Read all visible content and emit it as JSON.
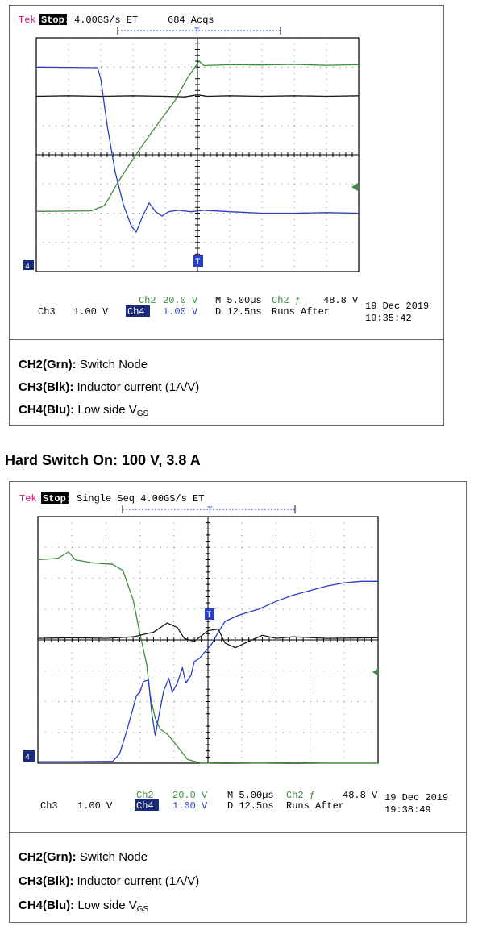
{
  "section_title": "Hard Switch On: 100 V, 3.8 A",
  "chart_data": [
    {
      "type": "line",
      "header": {
        "brand": "Tek",
        "state": "Stop:",
        "rate": "4.00GS/s ET",
        "acq": "684 Acqs"
      },
      "x_divisions": 10,
      "y_divisions": 8,
      "series": [
        {
          "name": "Ch2",
          "color": "#3c8c3c",
          "points": [
            [
              0,
              2.06
            ],
            [
              1.7,
              2.08
            ],
            [
              2.1,
              2.25
            ],
            [
              2.25,
              2.5
            ],
            [
              2.5,
              3.0
            ],
            [
              3.0,
              3.85
            ],
            [
              3.6,
              4.8
            ],
            [
              4.3,
              5.85
            ],
            [
              4.7,
              6.65
            ],
            [
              5.05,
              7.2
            ],
            [
              5.2,
              7.05
            ],
            [
              6.0,
              7.08
            ],
            [
              7.0,
              7.07
            ],
            [
              8.0,
              7.09
            ],
            [
              9.0,
              7.06
            ],
            [
              10,
              7.08
            ]
          ]
        },
        {
          "name": "Ch3",
          "color": "#1a1a1a",
          "points": [
            [
              0,
              6.0
            ],
            [
              1.0,
              6.02
            ],
            [
              2.0,
              6.0
            ],
            [
              3.0,
              6.02
            ],
            [
              4.0,
              6.0
            ],
            [
              4.6,
              5.98
            ],
            [
              5.0,
              6.05
            ],
            [
              5.3,
              6.0
            ],
            [
              6.0,
              6.02
            ],
            [
              7.0,
              6.0
            ],
            [
              8.0,
              6.02
            ],
            [
              9.0,
              6.0
            ],
            [
              10,
              6.02
            ]
          ]
        },
        {
          "name": "Ch4",
          "color": "#2a3fbf",
          "points": [
            [
              0,
              7.0
            ],
            [
              1.0,
              6.99
            ],
            [
              1.9,
              6.98
            ],
            [
              2.0,
              6.6
            ],
            [
              2.2,
              5.0
            ],
            [
              2.45,
              3.4
            ],
            [
              2.7,
              2.3
            ],
            [
              2.95,
              1.55
            ],
            [
              3.1,
              1.35
            ],
            [
              3.3,
              1.9
            ],
            [
              3.5,
              2.35
            ],
            [
              3.7,
              2.05
            ],
            [
              3.9,
              1.9
            ],
            [
              4.1,
              2.05
            ],
            [
              4.4,
              2.1
            ],
            [
              4.8,
              2.05
            ],
            [
              5.2,
              2.1
            ],
            [
              6.0,
              2.05
            ],
            [
              7.0,
              2.0
            ],
            [
              8.0,
              2.0
            ],
            [
              9.0,
              2.02
            ],
            [
              10,
              2.0
            ]
          ]
        }
      ],
      "readout": {
        "ch2": "Ch2",
        "ch2_scale": "20.0 V",
        "ch3": "Ch3",
        "ch3_scale": "1.00 V",
        "ch4": "Ch4",
        "ch4_scale": "1.00 V",
        "timebase": "M 5.00µs",
        "delay": "D 12.5ns",
        "trigger": "Ch2 ƒ",
        "trigger_level": "48.8 V",
        "mode": "Runs After",
        "date": "19 Dec 2019",
        "time": "19:35:42"
      },
      "markers": {
        "trigger": "T",
        "ch4_ground": "4"
      }
    },
    {
      "type": "line",
      "header": {
        "brand": "Tek",
        "state": "Stop:",
        "rate": "Single Seq  4.00GS/s ET",
        "acq": ""
      },
      "x_divisions": 10,
      "y_divisions": 8,
      "series": [
        {
          "name": "Ch2",
          "color": "#3c8c3c",
          "points": [
            [
              0,
              6.6
            ],
            [
              0.6,
              6.65
            ],
            [
              0.9,
              6.85
            ],
            [
              1.1,
              6.6
            ],
            [
              1.6,
              6.5
            ],
            [
              2.2,
              6.45
            ],
            [
              2.5,
              6.25
            ],
            [
              2.8,
              5.3
            ],
            [
              3.0,
              4.2
            ],
            [
              3.2,
              3.2
            ],
            [
              3.3,
              2.2
            ],
            [
              3.45,
              1.45
            ],
            [
              3.6,
              1.1
            ],
            [
              3.8,
              0.95
            ],
            [
              4.1,
              0.55
            ],
            [
              4.4,
              0.12
            ],
            [
              4.8,
              0.0
            ],
            [
              5.5,
              0.02
            ],
            [
              6.5,
              0.0
            ],
            [
              7.5,
              0.02
            ],
            [
              8.5,
              0.0
            ],
            [
              10,
              0.0
            ]
          ]
        },
        {
          "name": "Ch3",
          "color": "#1a1a1a",
          "points": [
            [
              0,
              4.05
            ],
            [
              1.0,
              4.07
            ],
            [
              2.0,
              4.05
            ],
            [
              2.8,
              4.1
            ],
            [
              3.4,
              4.25
            ],
            [
              3.8,
              4.55
            ],
            [
              4.1,
              4.4
            ],
            [
              4.3,
              4.05
            ],
            [
              4.6,
              3.95
            ],
            [
              5.0,
              4.3
            ],
            [
              5.3,
              4.35
            ],
            [
              5.5,
              3.9
            ],
            [
              5.8,
              3.75
            ],
            [
              6.2,
              3.95
            ],
            [
              6.6,
              4.15
            ],
            [
              7.0,
              4.05
            ],
            [
              7.5,
              4.1
            ],
            [
              8.5,
              4.05
            ],
            [
              10,
              4.07
            ]
          ]
        },
        {
          "name": "Ch4",
          "color": "#2a3fbf",
          "points": [
            [
              0,
              0.05
            ],
            [
              1.0,
              0.05
            ],
            [
              2.2,
              0.06
            ],
            [
              2.4,
              0.3
            ],
            [
              2.6,
              1.0
            ],
            [
              2.75,
              1.6
            ],
            [
              2.9,
              2.2
            ],
            [
              3.0,
              2.3
            ],
            [
              3.1,
              2.65
            ],
            [
              3.25,
              2.7
            ],
            [
              3.35,
              1.6
            ],
            [
              3.45,
              0.9
            ],
            [
              3.55,
              1.5
            ],
            [
              3.7,
              2.35
            ],
            [
              3.85,
              2.75
            ],
            [
              3.95,
              2.3
            ],
            [
              4.1,
              2.6
            ],
            [
              4.25,
              3.1
            ],
            [
              4.35,
              2.6
            ],
            [
              4.5,
              2.85
            ],
            [
              4.6,
              3.3
            ],
            [
              4.75,
              3.4
            ],
            [
              4.9,
              3.6
            ],
            [
              5.1,
              3.85
            ],
            [
              5.3,
              4.25
            ],
            [
              5.5,
              4.6
            ],
            [
              5.9,
              4.8
            ],
            [
              6.5,
              5.0
            ],
            [
              7.0,
              5.25
            ],
            [
              7.5,
              5.45
            ],
            [
              8.0,
              5.6
            ],
            [
              8.5,
              5.75
            ],
            [
              9.0,
              5.85
            ],
            [
              9.5,
              5.9
            ],
            [
              10,
              5.9
            ]
          ]
        }
      ],
      "readout": {
        "ch2": "Ch2",
        "ch2_scale": "20.0 V",
        "ch3": "Ch3",
        "ch3_scale": "1.00 V",
        "ch4": "Ch4",
        "ch4_scale": "1.00 V",
        "timebase": "M 5.00µs",
        "delay": "D 12.5ns",
        "trigger": "Ch2 ƒ",
        "trigger_level": "48.8 V",
        "mode": "Runs After",
        "date": "19 Dec 2019",
        "time": "19:38:49"
      },
      "markers": {
        "trigger": "T",
        "ch4_ground": "4"
      }
    }
  ],
  "captions": [
    [
      {
        "label": "CH2(Grn):",
        "text": "Switch Node",
        "sub": ""
      },
      {
        "label": "CH3(Blk):",
        "text": "Inductor current (1A/V)",
        "sub": ""
      },
      {
        "label": "CH4(Blu):",
        "text": "Low side V",
        "sub": "GS"
      }
    ],
    [
      {
        "label": "CH2(Grn):",
        "text": "Switch Node",
        "sub": ""
      },
      {
        "label": "CH3(Blk):",
        "text": "Inductor current (1A/V)",
        "sub": ""
      },
      {
        "label": "CH4(Blu):",
        "text": "Low side V",
        "sub": "GS"
      }
    ]
  ]
}
